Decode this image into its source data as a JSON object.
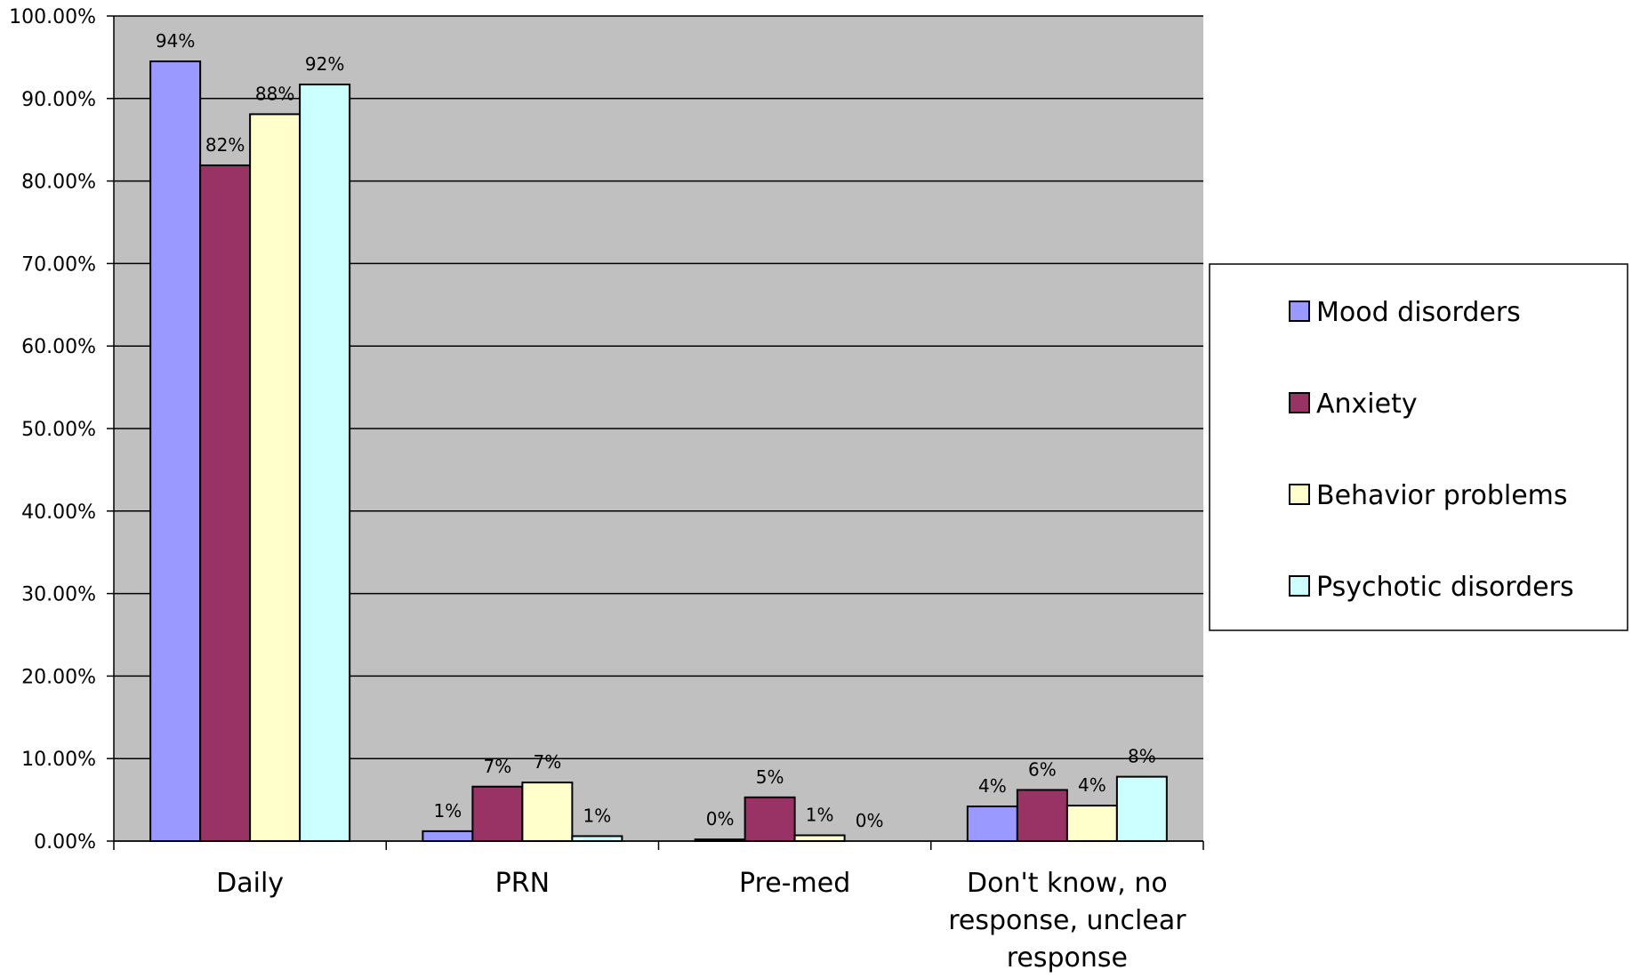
{
  "chart_data": {
    "type": "bar",
    "title": "",
    "xlabel": "",
    "ylabel": "",
    "ylim": [
      0,
      100
    ],
    "grid": true,
    "legend_position": "right",
    "yticks": [
      "0.00%",
      "10.00%",
      "20.00%",
      "30.00%",
      "40.00%",
      "50.00%",
      "60.00%",
      "70.00%",
      "80.00%",
      "90.00%",
      "100.00%"
    ],
    "categories": [
      [
        "Daily"
      ],
      [
        "PRN"
      ],
      [
        "Pre-med"
      ],
      [
        "Don't know, no",
        "response, unclear",
        "response"
      ]
    ],
    "series": [
      {
        "name": "Mood disorders",
        "color": "#9999ff",
        "values": [
          94.5,
          1.2,
          0.2,
          4.2
        ],
        "labels": [
          "94%",
          "1%",
          "0%",
          "4%"
        ]
      },
      {
        "name": "Anxiety",
        "color": "#993366",
        "values": [
          81.9,
          6.6,
          5.3,
          6.2
        ],
        "labels": [
          "82%",
          "7%",
          "5%",
          "6%"
        ]
      },
      {
        "name": "Behavior problems",
        "color": "#ffffcc",
        "values": [
          88.1,
          7.1,
          0.7,
          4.3
        ],
        "labels": [
          "88%",
          "7%",
          "1%",
          "4%"
        ]
      },
      {
        "name": "Psychotic disorders",
        "color": "#ccffff",
        "values": [
          91.7,
          0.6,
          0.0,
          7.8
        ],
        "labels": [
          "92%",
          "1%",
          "0%",
          "8%"
        ]
      }
    ],
    "plot_background": "#c0c0c0",
    "gridline_color": "#000000"
  }
}
